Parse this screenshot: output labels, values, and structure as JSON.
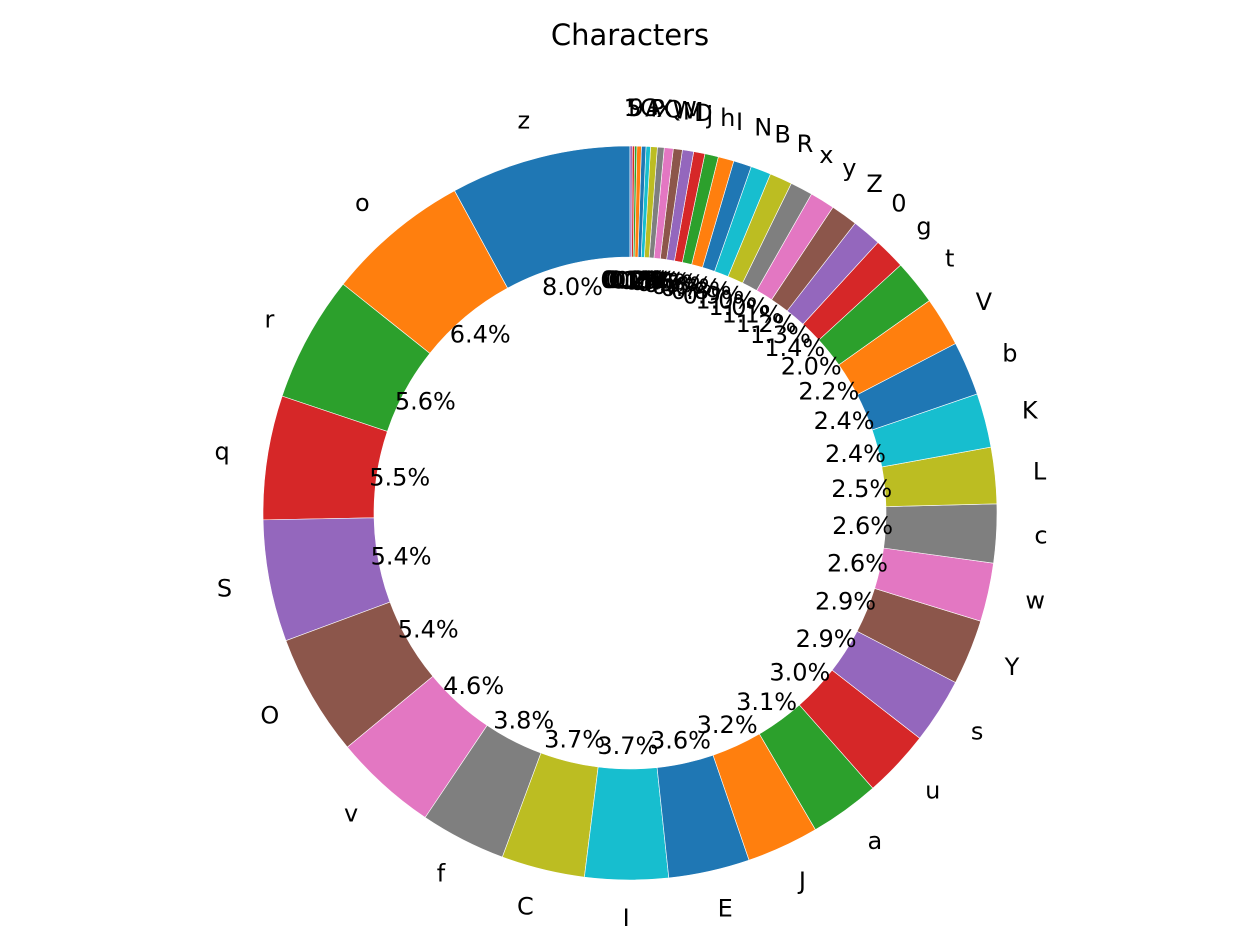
{
  "chart_data": {
    "type": "pie",
    "donut": true,
    "title": "Characters",
    "start": "top",
    "direction": "counterclockwise",
    "colors": [
      "#1f77b4",
      "#ff7f0e",
      "#2ca02c",
      "#d62728",
      "#9467bd",
      "#8c564b",
      "#e377c2",
      "#7f7f7f",
      "#bcbd22",
      "#17becf"
    ],
    "slices": [
      {
        "label": "z",
        "value": 8.0,
        "pct": "8.0%"
      },
      {
        "label": "o",
        "value": 6.4,
        "pct": "6.4%"
      },
      {
        "label": "r",
        "value": 5.6,
        "pct": "5.6%"
      },
      {
        "label": "q",
        "value": 5.5,
        "pct": "5.5%"
      },
      {
        "label": "S",
        "value": 5.4,
        "pct": "5.4%"
      },
      {
        "label": "O",
        "value": 5.4,
        "pct": "5.4%"
      },
      {
        "label": "v",
        "value": 4.6,
        "pct": "4.6%"
      },
      {
        "label": "f",
        "value": 3.8,
        "pct": "3.8%"
      },
      {
        "label": "C",
        "value": 3.7,
        "pct": "3.7%"
      },
      {
        "label": "I",
        "value": 3.7,
        "pct": "3.7%"
      },
      {
        "label": "E",
        "value": 3.6,
        "pct": "3.6%"
      },
      {
        "label": "J",
        "value": 3.2,
        "pct": "3.2%"
      },
      {
        "label": "a",
        "value": 3.1,
        "pct": "3.1%"
      },
      {
        "label": "u",
        "value": 3.0,
        "pct": "3.0%"
      },
      {
        "label": "s",
        "value": 2.9,
        "pct": "2.9%"
      },
      {
        "label": "Y",
        "value": 2.9,
        "pct": "2.9%"
      },
      {
        "label": "w",
        "value": 2.6,
        "pct": "2.6%"
      },
      {
        "label": "c",
        "value": 2.6,
        "pct": "2.6%"
      },
      {
        "label": "L",
        "value": 2.5,
        "pct": "2.5%"
      },
      {
        "label": "K",
        "value": 2.4,
        "pct": "2.4%"
      },
      {
        "label": "b",
        "value": 2.4,
        "pct": "2.4%"
      },
      {
        "label": "V",
        "value": 2.2,
        "pct": "2.2%"
      },
      {
        "label": "t",
        "value": 2.0,
        "pct": "2.0%"
      },
      {
        "label": "g",
        "value": 1.4,
        "pct": "1.4%"
      },
      {
        "label": "0",
        "value": 1.3,
        "pct": "1.3%"
      },
      {
        "label": "Z",
        "value": 1.2,
        "pct": "1.2%"
      },
      {
        "label": "y",
        "value": 1.1,
        "pct": "1.1%"
      },
      {
        "label": "x",
        "value": 1.0,
        "pct": "1.0%"
      },
      {
        "label": "R",
        "value": 1.0,
        "pct": "1.0%"
      },
      {
        "label": "B",
        "value": 0.9,
        "pct": "0.9%"
      },
      {
        "label": "N",
        "value": 0.8,
        "pct": "0.8%"
      },
      {
        "label": "I",
        "value": 0.7,
        "pct": "0.7%"
      },
      {
        "label": "h",
        "value": 0.6,
        "pct": "0.6%"
      },
      {
        "label": "j",
        "value": 0.5,
        "pct": "0.5%"
      },
      {
        "label": "D",
        "value": 0.5,
        "pct": "0.5%"
      },
      {
        "label": "M",
        "value": 0.4,
        "pct": "0.4%"
      },
      {
        "label": "W",
        "value": 0.4,
        "pct": "0.4%"
      },
      {
        "label": "Q",
        "value": 0.3,
        "pct": "0.3%"
      },
      {
        "label": "X",
        "value": 0.3,
        "pct": "0.3%"
      },
      {
        "label": "P",
        "value": 0.2,
        "pct": "0.2%"
      },
      {
        "label": "A",
        "value": 0.2,
        "pct": "0.2%"
      },
      {
        "label": "G",
        "value": 0.2,
        "pct": "0.2%"
      },
      {
        "label": "9",
        "value": 0.1,
        "pct": "0.1%"
      },
      {
        "label": "5",
        "value": 0.1,
        "pct": "0.1%"
      },
      {
        "label": "1",
        "value": 0.1,
        "pct": "0.1%"
      }
    ]
  }
}
